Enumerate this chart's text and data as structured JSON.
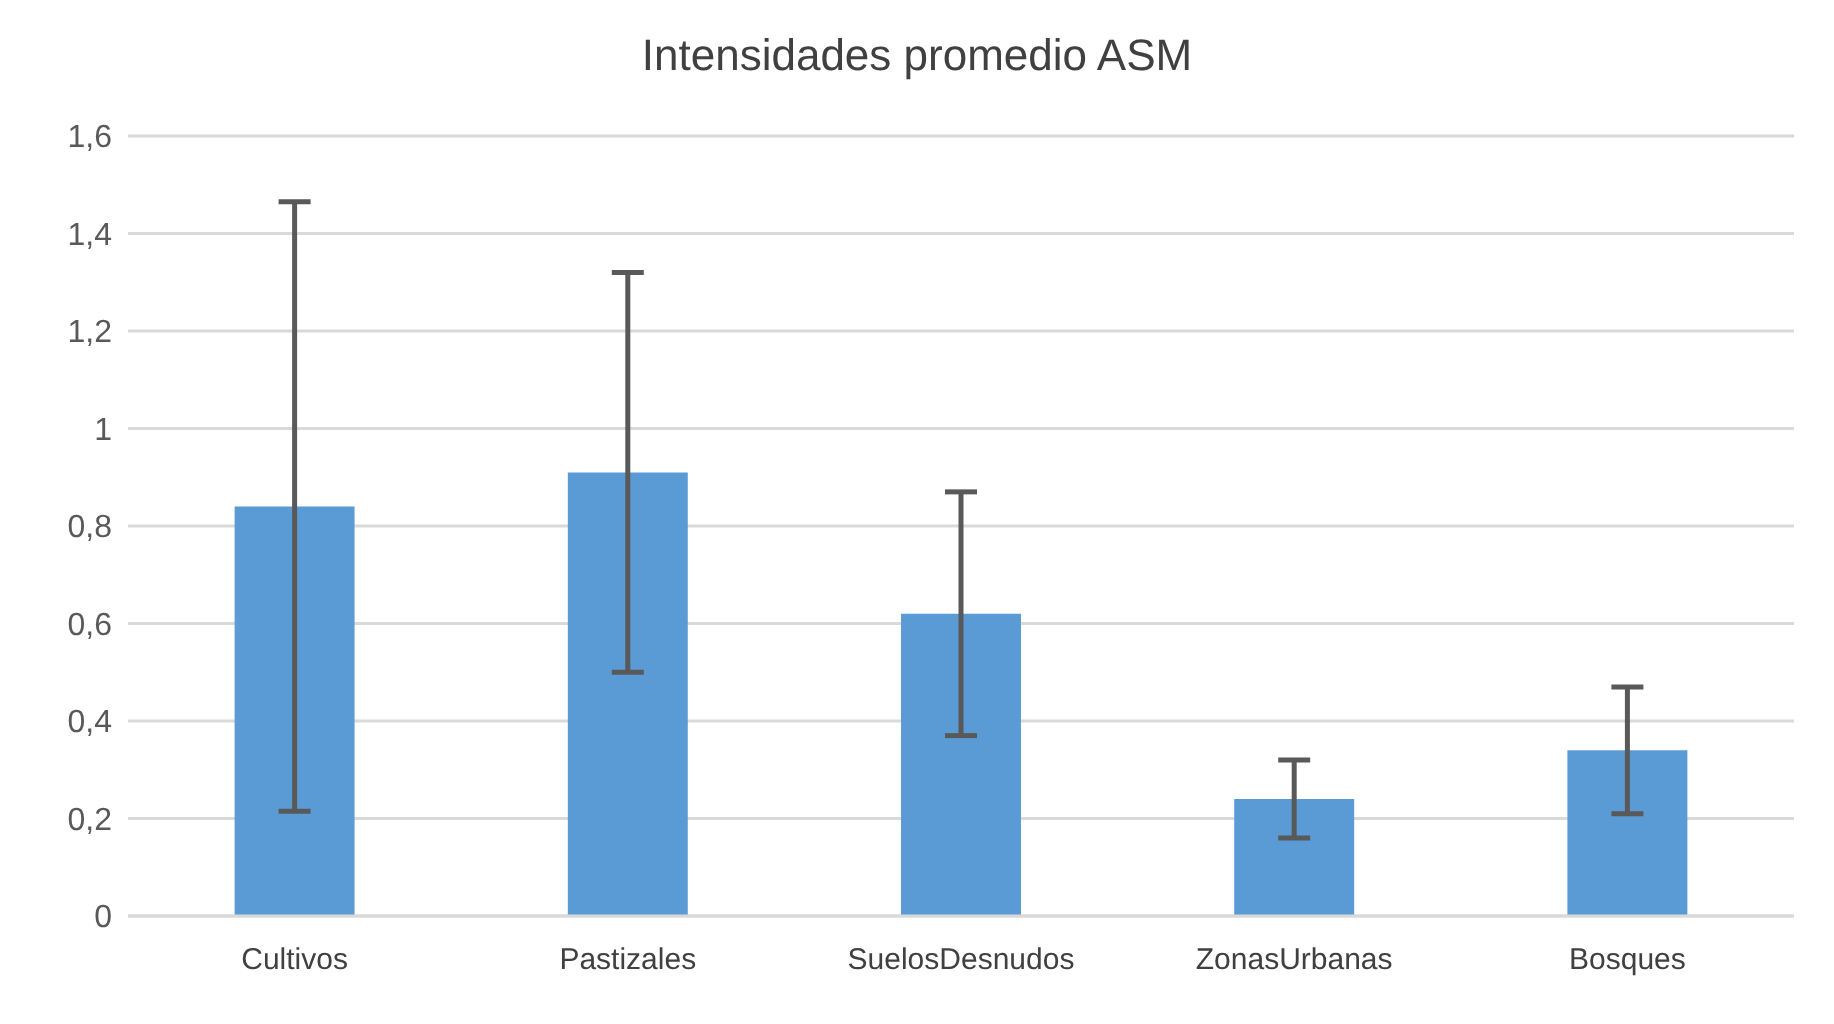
{
  "chart_data": {
    "type": "bar",
    "title": "Intensidades promedio ASM",
    "categories": [
      "Cultivos",
      "Pastizales",
      "SuelosDesnudos",
      "ZonasUrbanas",
      "Bosques"
    ],
    "values": [
      0.84,
      0.91,
      0.62,
      0.24,
      0.34
    ],
    "errors": [
      0.625,
      0.41,
      0.25,
      0.08,
      0.13
    ],
    "color": "#5b9bd5",
    "ylim": [
      0,
      1.6
    ],
    "yticks": [
      0,
      {
        "value": 0.2,
        "label": "0,2"
      },
      {
        "value": 0.4,
        "label": "0,4"
      },
      {
        "value": 0.6,
        "label": "0,6"
      },
      {
        "value": 0.8,
        "label": "0,8"
      },
      1,
      {
        "value": 1.2,
        "label": "1,2"
      },
      {
        "value": 1.4,
        "label": "1,4"
      },
      {
        "value": 1.6,
        "label": "1,6"
      }
    ],
    "grid": "y"
  }
}
